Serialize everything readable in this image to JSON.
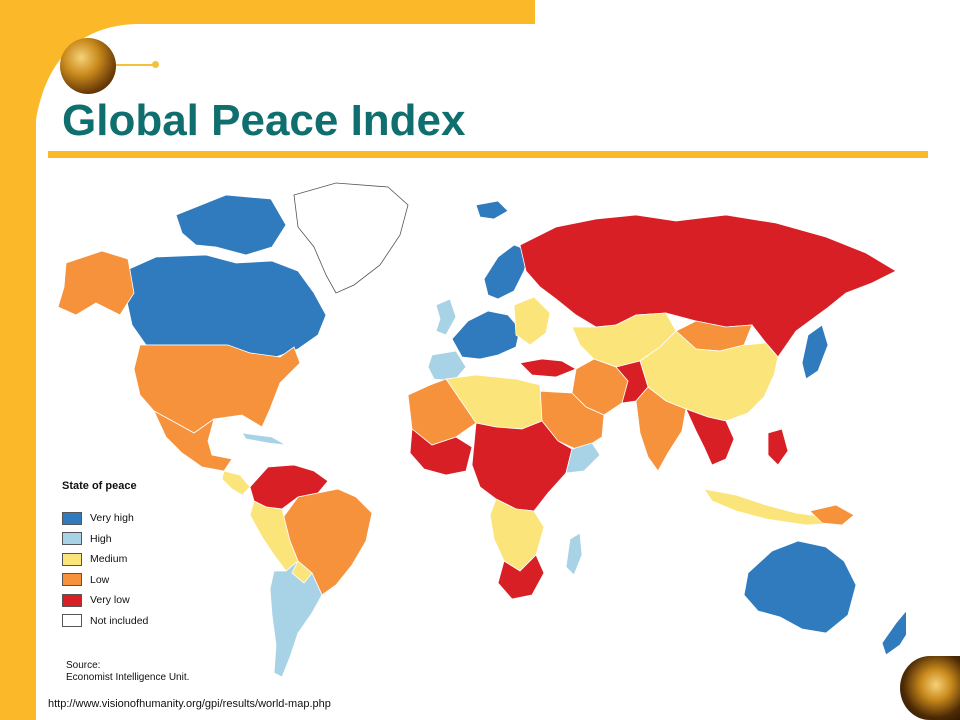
{
  "title": "Global Peace Index",
  "colors": {
    "frame": "#fbb829",
    "title": "#0f6e6e",
    "very_high": "#2f7bbd",
    "high": "#a8d3e6",
    "medium": "#fbe57a",
    "low": "#f6923c",
    "very_low": "#d81f26",
    "not_included": "#ffffff",
    "ocean": "#ffffff"
  },
  "legend": {
    "title": "State of peace",
    "items": [
      {
        "label": "Very high",
        "color": "#2f7bbd"
      },
      {
        "label": "High",
        "color": "#a8d3e6"
      },
      {
        "label": "Medium",
        "color": "#fbe57a"
      },
      {
        "label": "Low",
        "color": "#f6923c"
      },
      {
        "label": "Very low",
        "color": "#d81f26"
      },
      {
        "label": "Not included",
        "color": "#ffffff"
      }
    ]
  },
  "source": {
    "line1": "Source:",
    "line2": "Economist Intelligence Unit."
  },
  "url": "http://www.visionofhumanity.org/gpi/results/world-map.php"
}
